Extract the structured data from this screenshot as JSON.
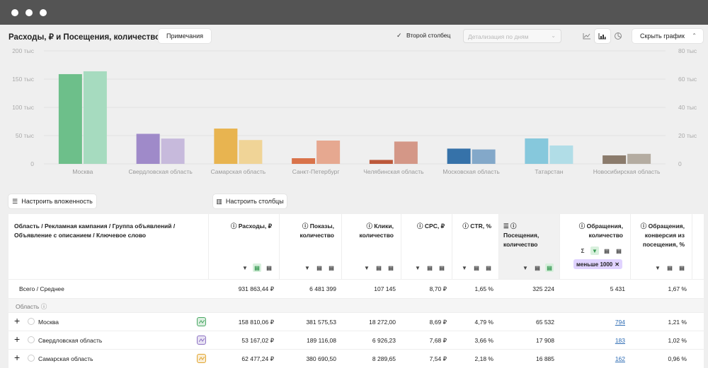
{
  "header": {
    "title": "Расходы, ₽ и Посещения, количество",
    "notes_label": "Примечания",
    "second_column_label": "Второй столбец",
    "detail_placeholder": "Детализация по дням",
    "hide_chart_label": "Скрыть график",
    "chart_type_icons": [
      "line-chart-icon",
      "bar-chart-icon",
      "pie-chart-icon"
    ],
    "active_chart_type": "bar"
  },
  "chart_data": {
    "type": "bar",
    "categories": [
      "Москва",
      "Свердловская область",
      "Самарская область",
      "Санкт-Петербург",
      "Челябинская область",
      "Московская область",
      "Татарстан",
      "Новосибирская область"
    ],
    "left_ticks": [
      "200 тыс",
      "150 тыс",
      "100 тыс",
      "50 тыс",
      "0"
    ],
    "right_ticks": [
      "80 тыс",
      "60 тыс",
      "40 тыс",
      "20 тыс",
      "0"
    ],
    "ylim_left": [
      0,
      200000
    ],
    "ylim_right": [
      0,
      80000
    ],
    "series": [
      {
        "values": [
          158810,
          53167,
          62477,
          10000,
          7000,
          27000,
          45000,
          15000
        ],
        "axis": "left",
        "colors": [
          "#6dbf8a",
          "#9f8ac9",
          "#e8b450",
          "#d9734a",
          "#bc583a",
          "#3672a9",
          "#86c8dc",
          "#8b7b6c"
        ]
      },
      {
        "values": [
          65532,
          17908,
          16885,
          16500,
          15800,
          10200,
          13000,
          7100
        ],
        "axis": "right",
        "colors": [
          "#a6dbbf",
          "#c7badc",
          "#f0d497",
          "#e6a890",
          "#d49787",
          "#83a8c9",
          "#b1dde7",
          "#b4aca1"
        ]
      }
    ]
  },
  "table": {
    "nest_button": "Настроить вложенность",
    "columns_button": "Настроить столбцы",
    "headers": [
      "Область / Рекламная кампания / Группа объявлений / Объявление с описанием / Ключевое слово",
      "Расходы, ₽",
      "Показы, количество",
      "Клики, количество",
      "CPC, ₽",
      "CTR, %",
      "Посещения, количество",
      "Обращения, количество",
      "Обращения, конверсия из посещения, %"
    ],
    "filter_tag": "меньше 1000",
    "total": {
      "label": "Всего / Среднее",
      "values": [
        "931 863,44 ₽",
        "6 481 399",
        "107 145",
        "8,70 ₽",
        "1,65 %",
        "325 224",
        "5 431",
        "1,67 %"
      ]
    },
    "group_label": "Область",
    "rows": [
      {
        "name": "Москва",
        "color": "#4aa864",
        "values": [
          "158 810,06 ₽",
          "381 575,53",
          "18 272,00",
          "8,69 ₽",
          "4,79 %",
          "65 532",
          "794",
          "1,21 %"
        ]
      },
      {
        "name": "Свердловская область",
        "color": "#8d72c3",
        "values": [
          "53 167,02 ₽",
          "189 116,08",
          "6 926,23",
          "7,68 ₽",
          "3,66 %",
          "17 908",
          "183",
          "1,02 %"
        ]
      },
      {
        "name": "Самарская область",
        "color": "#e2a630",
        "values": [
          "62 477,24 ₽",
          "380 690,50",
          "8 289,65",
          "7,54 ₽",
          "2,18 %",
          "16 885",
          "162",
          "0,96 %"
        ]
      }
    ]
  }
}
